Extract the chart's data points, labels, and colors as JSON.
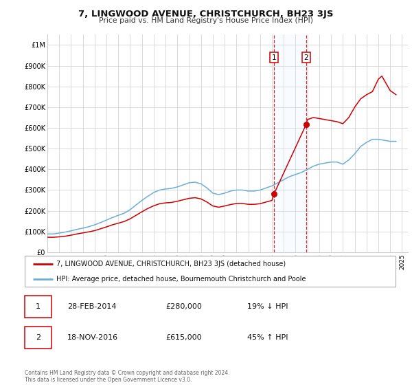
{
  "title": "7, LINGWOOD AVENUE, CHRISTCHURCH, BH23 3JS",
  "subtitle": "Price paid vs. HM Land Registry's House Price Index (HPI)",
  "xlim": [
    1995.0,
    2025.5
  ],
  "ylim": [
    0,
    1050000
  ],
  "yticks": [
    0,
    100000,
    200000,
    300000,
    400000,
    500000,
    600000,
    700000,
    800000,
    900000,
    1000000
  ],
  "ytick_labels": [
    "£0",
    "£100K",
    "£200K",
    "£300K",
    "£400K",
    "£500K",
    "£600K",
    "£700K",
    "£800K",
    "£900K",
    "£1M"
  ],
  "xticks": [
    1995,
    1996,
    1997,
    1998,
    1999,
    2000,
    2001,
    2002,
    2003,
    2004,
    2005,
    2006,
    2007,
    2008,
    2009,
    2010,
    2011,
    2012,
    2013,
    2014,
    2015,
    2016,
    2017,
    2018,
    2019,
    2020,
    2021,
    2022,
    2023,
    2024,
    2025
  ],
  "hpi_color": "#6baed6",
  "price_color": "#cc0000",
  "shade_color": "#ddeeff",
  "transaction1_x": 2014.164,
  "transaction1_y": 280000,
  "transaction2_x": 2016.88,
  "transaction2_y": 615000,
  "transaction1_label": "1",
  "transaction2_label": "2",
  "legend_line1": "7, LINGWOOD AVENUE, CHRISTCHURCH, BH23 3JS (detached house)",
  "legend_line2": "HPI: Average price, detached house, Bournemouth Christchurch and Poole",
  "table_row1": [
    "1",
    "28-FEB-2014",
    "£280,000",
    "19% ↓ HPI"
  ],
  "table_row2": [
    "2",
    "18-NOV-2016",
    "£615,000",
    "45% ↑ HPI"
  ],
  "footnote": "Contains HM Land Registry data © Crown copyright and database right 2024.\nThis data is licensed under the Open Government Licence v3.0.",
  "hpi_data_x": [
    1995.0,
    1995.5,
    1996.0,
    1996.5,
    1997.0,
    1997.5,
    1998.0,
    1998.5,
    1999.0,
    1999.5,
    2000.0,
    2000.5,
    2001.0,
    2001.5,
    2002.0,
    2002.5,
    2003.0,
    2003.5,
    2004.0,
    2004.5,
    2005.0,
    2005.5,
    2006.0,
    2006.5,
    2007.0,
    2007.5,
    2008.0,
    2008.5,
    2009.0,
    2009.5,
    2010.0,
    2010.5,
    2011.0,
    2011.5,
    2012.0,
    2012.5,
    2013.0,
    2013.5,
    2014.0,
    2014.5,
    2015.0,
    2015.5,
    2016.0,
    2016.5,
    2017.0,
    2017.5,
    2018.0,
    2018.5,
    2019.0,
    2019.5,
    2020.0,
    2020.5,
    2021.0,
    2021.5,
    2022.0,
    2022.5,
    2023.0,
    2023.5,
    2024.0,
    2024.5
  ],
  "hpi_data_y": [
    88000,
    88000,
    92000,
    97000,
    103000,
    110000,
    116000,
    123000,
    132000,
    143000,
    155000,
    167000,
    178000,
    188000,
    205000,
    228000,
    250000,
    270000,
    288000,
    300000,
    305000,
    308000,
    315000,
    325000,
    335000,
    338000,
    330000,
    310000,
    285000,
    278000,
    285000,
    295000,
    300000,
    300000,
    295000,
    295000,
    300000,
    310000,
    320000,
    335000,
    350000,
    365000,
    375000,
    385000,
    400000,
    415000,
    425000,
    430000,
    435000,
    435000,
    425000,
    445000,
    475000,
    510000,
    530000,
    545000,
    545000,
    540000,
    535000,
    535000
  ],
  "price_data_x": [
    1995.0,
    1995.5,
    1996.0,
    1996.5,
    1997.0,
    1997.5,
    1998.0,
    1998.5,
    1999.0,
    1999.5,
    2000.0,
    2000.5,
    2001.0,
    2001.5,
    2002.0,
    2002.5,
    2003.0,
    2003.5,
    2004.0,
    2004.5,
    2005.0,
    2005.5,
    2006.0,
    2006.5,
    2007.0,
    2007.5,
    2008.0,
    2008.5,
    2009.0,
    2009.5,
    2010.0,
    2010.5,
    2011.0,
    2011.5,
    2012.0,
    2012.5,
    2013.0,
    2013.5,
    2014.0,
    2014.164,
    2016.88,
    2017.0,
    2017.5,
    2018.0,
    2018.5,
    2019.0,
    2019.5,
    2020.0,
    2020.5,
    2021.0,
    2021.5,
    2022.0,
    2022.5,
    2023.0,
    2023.3,
    2023.6,
    2024.0,
    2024.5
  ],
  "price_data_y": [
    72000,
    72000,
    74000,
    77000,
    82000,
    88000,
    93000,
    98000,
    104000,
    113000,
    122000,
    132000,
    140000,
    148000,
    161000,
    178000,
    195000,
    211000,
    224000,
    234000,
    238000,
    240000,
    246000,
    253000,
    260000,
    263000,
    257000,
    242000,
    223000,
    217000,
    223000,
    230000,
    235000,
    235000,
    231000,
    231000,
    234000,
    242000,
    250000,
    280000,
    615000,
    640000,
    650000,
    645000,
    640000,
    635000,
    630000,
    620000,
    650000,
    700000,
    740000,
    760000,
    775000,
    835000,
    850000,
    820000,
    780000,
    760000
  ]
}
